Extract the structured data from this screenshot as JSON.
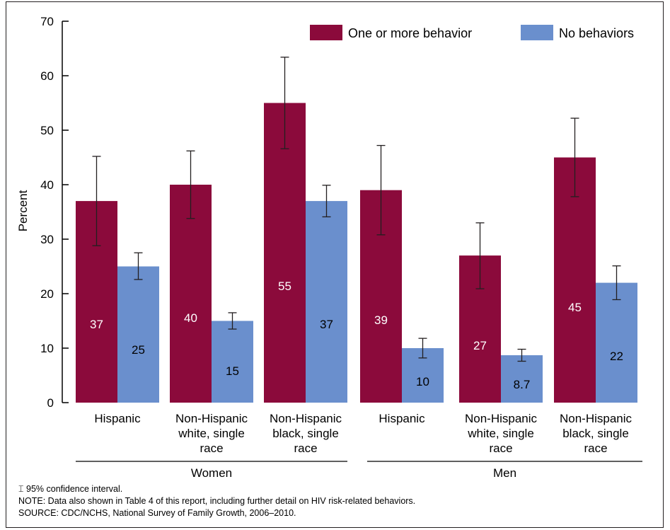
{
  "chart_data": {
    "type": "bar",
    "ylabel": "Percent",
    "ylim": [
      0,
      70
    ],
    "yticks": [
      0,
      10,
      20,
      30,
      40,
      50,
      60,
      70
    ],
    "grid": false,
    "legend_position": "top-right",
    "groups": [
      {
        "label": "Women",
        "categories": [
          [
            "Hispanic"
          ],
          [
            "Non-Hispanic",
            "white, single",
            "race"
          ],
          [
            "Non-Hispanic",
            "black, single",
            "race"
          ]
        ]
      },
      {
        "label": "Men",
        "categories": [
          [
            "Hispanic"
          ],
          [
            "Non-Hispanic",
            "white, single",
            "race"
          ],
          [
            "Non-Hispanic",
            "black, single",
            "race"
          ]
        ]
      }
    ],
    "series": [
      {
        "name": "One or more behavior",
        "color": "#8b0a3b",
        "label_color": "#ffffff",
        "values": [
          37,
          40,
          55,
          39,
          27,
          45
        ],
        "value_labels": [
          "37",
          "40",
          "55",
          "39",
          "27",
          "45"
        ],
        "ci_low": [
          28.8,
          33.8,
          46.6,
          30.8,
          20.9,
          37.8
        ],
        "ci_high": [
          45.2,
          46.2,
          63.4,
          47.2,
          33.0,
          52.2
        ]
      },
      {
        "name": "No behaviors",
        "color": "#6a8fcd",
        "label_color": "#000000",
        "values": [
          25,
          15,
          37,
          10,
          8.7,
          22
        ],
        "value_labels": [
          "25",
          "15",
          "37",
          "10",
          "8.7",
          "22"
        ],
        "ci_low": [
          22.6,
          13.5,
          34.1,
          8.2,
          7.6,
          18.9
        ],
        "ci_high": [
          27.5,
          16.5,
          39.9,
          11.8,
          9.8,
          25.1
        ]
      }
    ]
  },
  "footnotes": {
    "ci_symbol": "⌶",
    "ci_note": "95% confidence interval.",
    "note": "NOTE: Data also shown in Table 4 of this report, including further detail on HIV risk-related behaviors.",
    "source": "SOURCE: CDC/NCHS, National Survey of Family Growth, 2006–2010."
  }
}
